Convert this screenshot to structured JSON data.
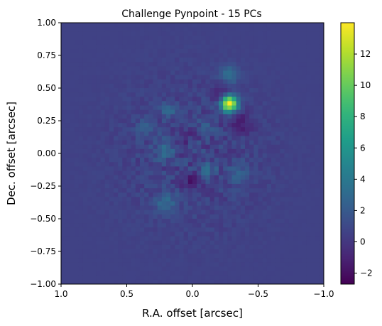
{
  "chart_data": {
    "type": "heatmap",
    "title": "Challenge Pynpoint - 15 PCs",
    "xlabel": "R.A. offset [arcsec]",
    "ylabel": "Dec. offset [arcsec]",
    "xlim": [
      1.0,
      -1.0
    ],
    "ylim": [
      -1.0,
      1.0
    ],
    "xticks": [
      {
        "value": 1.0,
        "label": "1.0"
      },
      {
        "value": 0.5,
        "label": "0.5"
      },
      {
        "value": 0.0,
        "label": "0.0"
      },
      {
        "value": -0.5,
        "label": "−0.5"
      },
      {
        "value": -1.0,
        "label": "−1.0"
      }
    ],
    "yticks": [
      {
        "value": -1.0,
        "label": "−1.00"
      },
      {
        "value": -0.75,
        "label": "−0.75"
      },
      {
        "value": -0.5,
        "label": "−0.50"
      },
      {
        "value": -0.25,
        "label": "−0.25"
      },
      {
        "value": 0.0,
        "label": "0.00"
      },
      {
        "value": 0.25,
        "label": "0.25"
      },
      {
        "value": 0.5,
        "label": "0.50"
      },
      {
        "value": 0.75,
        "label": "0.75"
      },
      {
        "value": 1.0,
        "label": "1.00"
      }
    ],
    "colormap": "viridis",
    "colorbar": {
      "range": [
        -2.7,
        14.0
      ],
      "ticks": [
        {
          "value": -2,
          "label": "−2"
        },
        {
          "value": 0,
          "label": "0"
        },
        {
          "value": 2,
          "label": "2"
        },
        {
          "value": 4,
          "label": "4"
        },
        {
          "value": 6,
          "label": "6"
        },
        {
          "value": 8,
          "label": "8"
        },
        {
          "value": 10,
          "label": "10"
        },
        {
          "value": 12,
          "label": "12"
        }
      ]
    },
    "background_value": 0.6,
    "features": [
      {
        "name": "companion-bright-source",
        "x": -0.28,
        "y": 0.38,
        "peak": 13.5,
        "sigma": 0.045
      },
      {
        "name": "negative-lobe-east",
        "x": -0.22,
        "y": 0.46,
        "peak": -2.0,
        "sigma": 0.05
      },
      {
        "name": "negative-lobe-south",
        "x": -0.36,
        "y": 0.23,
        "peak": -2.2,
        "sigma": 0.06
      },
      {
        "name": "bright-arc-upper",
        "x": -0.28,
        "y": 0.6,
        "peak": 2.8,
        "sigma": 0.05
      },
      {
        "name": "speckle-1",
        "x": 0.18,
        "y": 0.33,
        "peak": 2.2,
        "sigma": 0.04
      },
      {
        "name": "speckle-2",
        "x": 0.22,
        "y": 0.02,
        "peak": 2.6,
        "sigma": 0.05
      },
      {
        "name": "speckle-3",
        "x": -0.12,
        "y": -0.12,
        "peak": 2.6,
        "sigma": 0.04
      },
      {
        "name": "speckle-4",
        "x": 0.2,
        "y": -0.38,
        "peak": 2.4,
        "sigma": 0.06
      },
      {
        "name": "speckle-5",
        "x": 0.02,
        "y": -0.22,
        "peak": -1.6,
        "sigma": 0.05
      },
      {
        "name": "speckle-6",
        "x": -0.1,
        "y": 0.2,
        "peak": 2.0,
        "sigma": 0.04
      },
      {
        "name": "speckle-7",
        "x": 0.35,
        "y": 0.2,
        "peak": 1.8,
        "sigma": 0.05
      },
      {
        "name": "speckle-8",
        "x": -0.35,
        "y": -0.15,
        "peak": 1.6,
        "sigma": 0.06
      },
      {
        "name": "speckle-9",
        "x": 0.05,
        "y": 0.12,
        "peak": -1.2,
        "sigma": 0.04
      }
    ]
  }
}
